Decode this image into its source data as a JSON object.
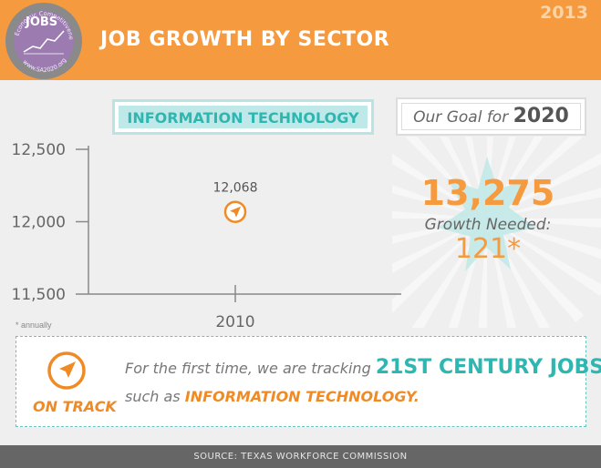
{
  "header": {
    "title": "JOB GROWTH BY SECTOR",
    "year": "2013",
    "logo": {
      "ring_text_top": "Economic Competitiveness",
      "word": "JOBS",
      "url": "www.SA2020.org"
    }
  },
  "sector": {
    "label": "INFORMATION TECHNOLOGY"
  },
  "goal": {
    "prefix": "Our Goal for",
    "year": "2020",
    "target": "13,275",
    "growth_label": "Growth Needed:",
    "growth_value": "121*"
  },
  "chart_data": {
    "type": "scatter",
    "categories": [
      "2010"
    ],
    "values": [
      12068
    ],
    "data_labels": [
      "12,068"
    ],
    "y_ticks": [
      "12,500",
      "12,000",
      "11,500"
    ],
    "ylim": [
      11500,
      12500
    ],
    "grid": false
  },
  "note": "* annually",
  "on_track": {
    "label": "ON TRACK",
    "line1_prefix": "For the first time, we are tracking",
    "line1_highlight": "21ST CENTURY JOBS",
    "line2_prefix": "such as",
    "line2_highlight": "INFORMATION TECHNOLOGY."
  },
  "footer": {
    "source": "SOURCE: TEXAS WORKFORCE COMMISSION"
  },
  "colors": {
    "orange": "#f59a3f",
    "teal": "#2fb6b1",
    "burst": "#bfe9e8",
    "footer": "#666666"
  }
}
